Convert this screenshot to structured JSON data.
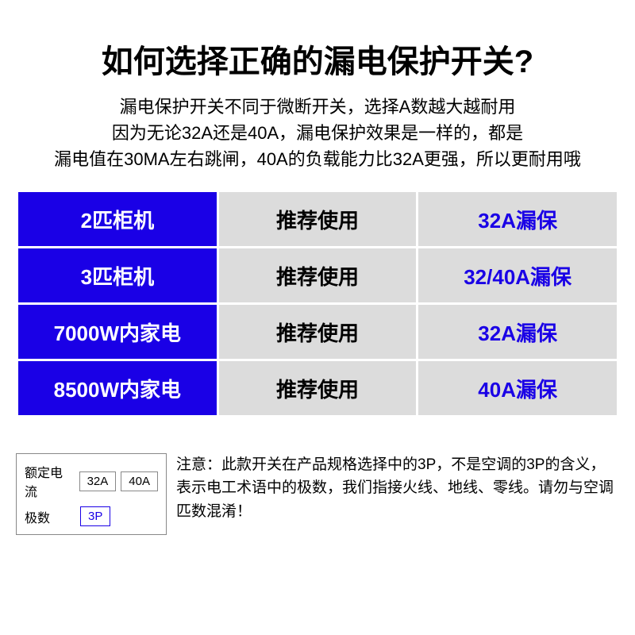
{
  "title": "如何选择正确的漏电保护开关?",
  "description": {
    "line1": "漏电保护开关不同于微断开关，选择A数越大越耐用",
    "line2": "因为无论32A还是40A，漏电保护效果是一样的，都是",
    "line3": "漏电值在30MA左右跳闸，40A的负载能力比32A更强，所以更耐用哦"
  },
  "table": {
    "rows": [
      {
        "c1": "2匹柜机",
        "c2": "推荐使用",
        "c3": "32A漏保"
      },
      {
        "c1": "3匹柜机",
        "c2": "推荐使用",
        "c3": "32/40A漏保"
      },
      {
        "c1": "7000W内家电",
        "c2": "推荐使用",
        "c3": "32A漏保"
      },
      {
        "c1": "8500W内家电",
        "c2": "推荐使用",
        "c3": "40A漏保"
      }
    ],
    "colors": {
      "col1_bg": "#1a00e6",
      "col1_text": "#ffffff",
      "col2_bg": "#dcdcdc",
      "col2_text": "#000000",
      "col3_bg": "#dcdcdc",
      "col3_text": "#1a00e6"
    }
  },
  "spec": {
    "label1": "额定电流",
    "opt1a": "32A",
    "opt1b": "40A",
    "label2": "极数",
    "opt2a": "3P"
  },
  "note": "注意：此款开关在产品规格选择中的3P，不是空调的3P的含义，表示电工术语中的极数，我们指接火线、地线、零线。请勿与空调匹数混淆！"
}
